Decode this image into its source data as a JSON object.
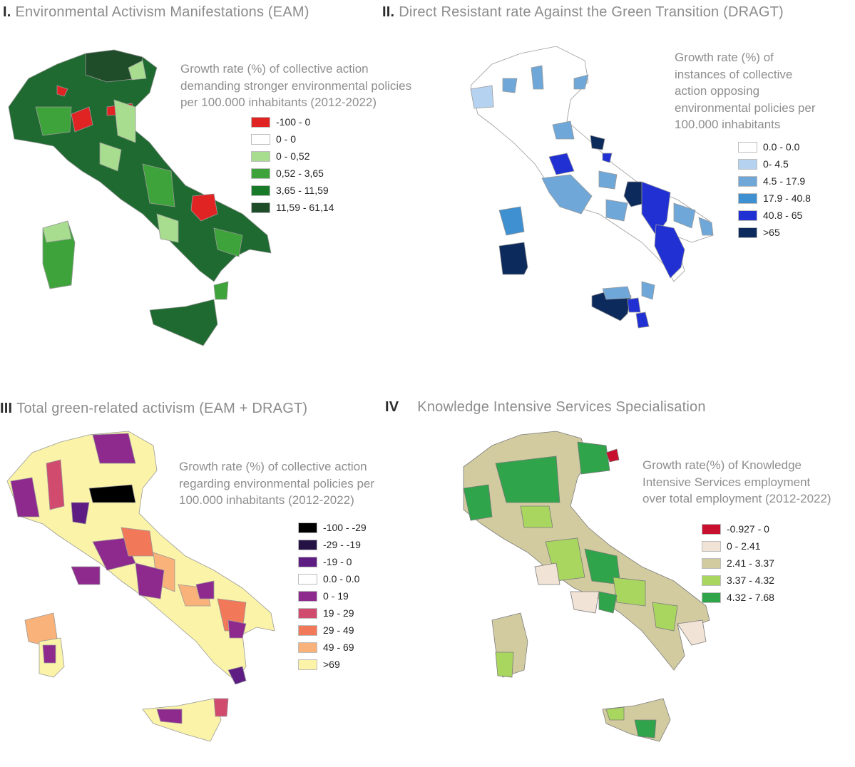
{
  "panels": [
    {
      "id": "I",
      "num": "I.",
      "title": "Environmental Activism Manifestations (EAM)",
      "subtitle_lines": [
        "Growth rate (%) of collective action",
        "demanding stronger environmental policies",
        "per 100.000 inhabitants (2012-2022)"
      ],
      "legend": [
        {
          "label": "-100 - 0",
          "color": "#e02323"
        },
        {
          "label": "0 - 0",
          "color": "#ffffff"
        },
        {
          "label": "0 - 0,52",
          "color": "#a8dc8f"
        },
        {
          "label": "0,52 - 3,65",
          "color": "#3ea33a"
        },
        {
          "label": "3,65 - 11,59",
          "color": "#187a28"
        },
        {
          "label": "11,59 - 61,14",
          "color": "#1f4d2a"
        }
      ]
    },
    {
      "id": "II",
      "num": "II.",
      "title": "Direct Resistant rate Against the Green Transition (DRAGT)",
      "subtitle_lines": [
        "Growth rate (%)  of",
        "instances of collective",
        "action opposing",
        "environmental policies per",
        "100.000 inhabitants"
      ],
      "legend": [
        {
          "label": "0.0 - 0.0",
          "color": "#ffffff"
        },
        {
          "label": "0- 4.5",
          "color": "#b5d3f0"
        },
        {
          "label": "4.5 - 17.9",
          "color": "#6fa7d8"
        },
        {
          "label": "17.9 - 40.8",
          "color": "#3f90d0"
        },
        {
          "label": "40.8 - 65",
          "color": "#2130d3"
        },
        {
          "label": ">65",
          "color": "#0c2a5c"
        }
      ]
    },
    {
      "id": "III",
      "num": "III",
      "title": "Total green-related activism (EAM + DRAGT)",
      "subtitle_lines": [
        "Growth rate (%) of collective action",
        "regarding environmental policies per",
        "100.000 inhabitants (2012-2022)"
      ],
      "legend": [
        {
          "label": "-100 - -29",
          "color": "#000000"
        },
        {
          "label": "-29 - -19",
          "color": "#251245"
        },
        {
          "label": "-19 - 0",
          "color": "#5e1d83"
        },
        {
          "label": "0.0 - 0.0",
          "color": "#ffffff"
        },
        {
          "label": "0 - 19",
          "color": "#8e2a8e"
        },
        {
          "label": "19 - 29",
          "color": "#d14b6e"
        },
        {
          "label": "29 - 49",
          "color": "#f2785a"
        },
        {
          "label": "49 - 69",
          "color": "#f8b27a"
        },
        {
          "label": ">69",
          "color": "#fbf3a8"
        }
      ]
    },
    {
      "id": "IV",
      "num": "IV",
      "title": "Knowledge Intensive Services Specialisation",
      "subtitle_lines": [
        "Growth rate(%) of  Knowledge",
        "Intensive Services employment",
        "over total employment (2012-2022)"
      ],
      "legend": [
        {
          "label": "-0.927 - 0",
          "color": "#c8102e"
        },
        {
          "label": "0 - 2.41",
          "color": "#f1e4d6"
        },
        {
          "label": "2.41 - 3.37",
          "color": "#d2cba0"
        },
        {
          "label": "3.37 - 4.32",
          "color": "#a9d65f"
        },
        {
          "label": "4.32 - 7.68",
          "color": "#2fa44a"
        }
      ]
    }
  ]
}
